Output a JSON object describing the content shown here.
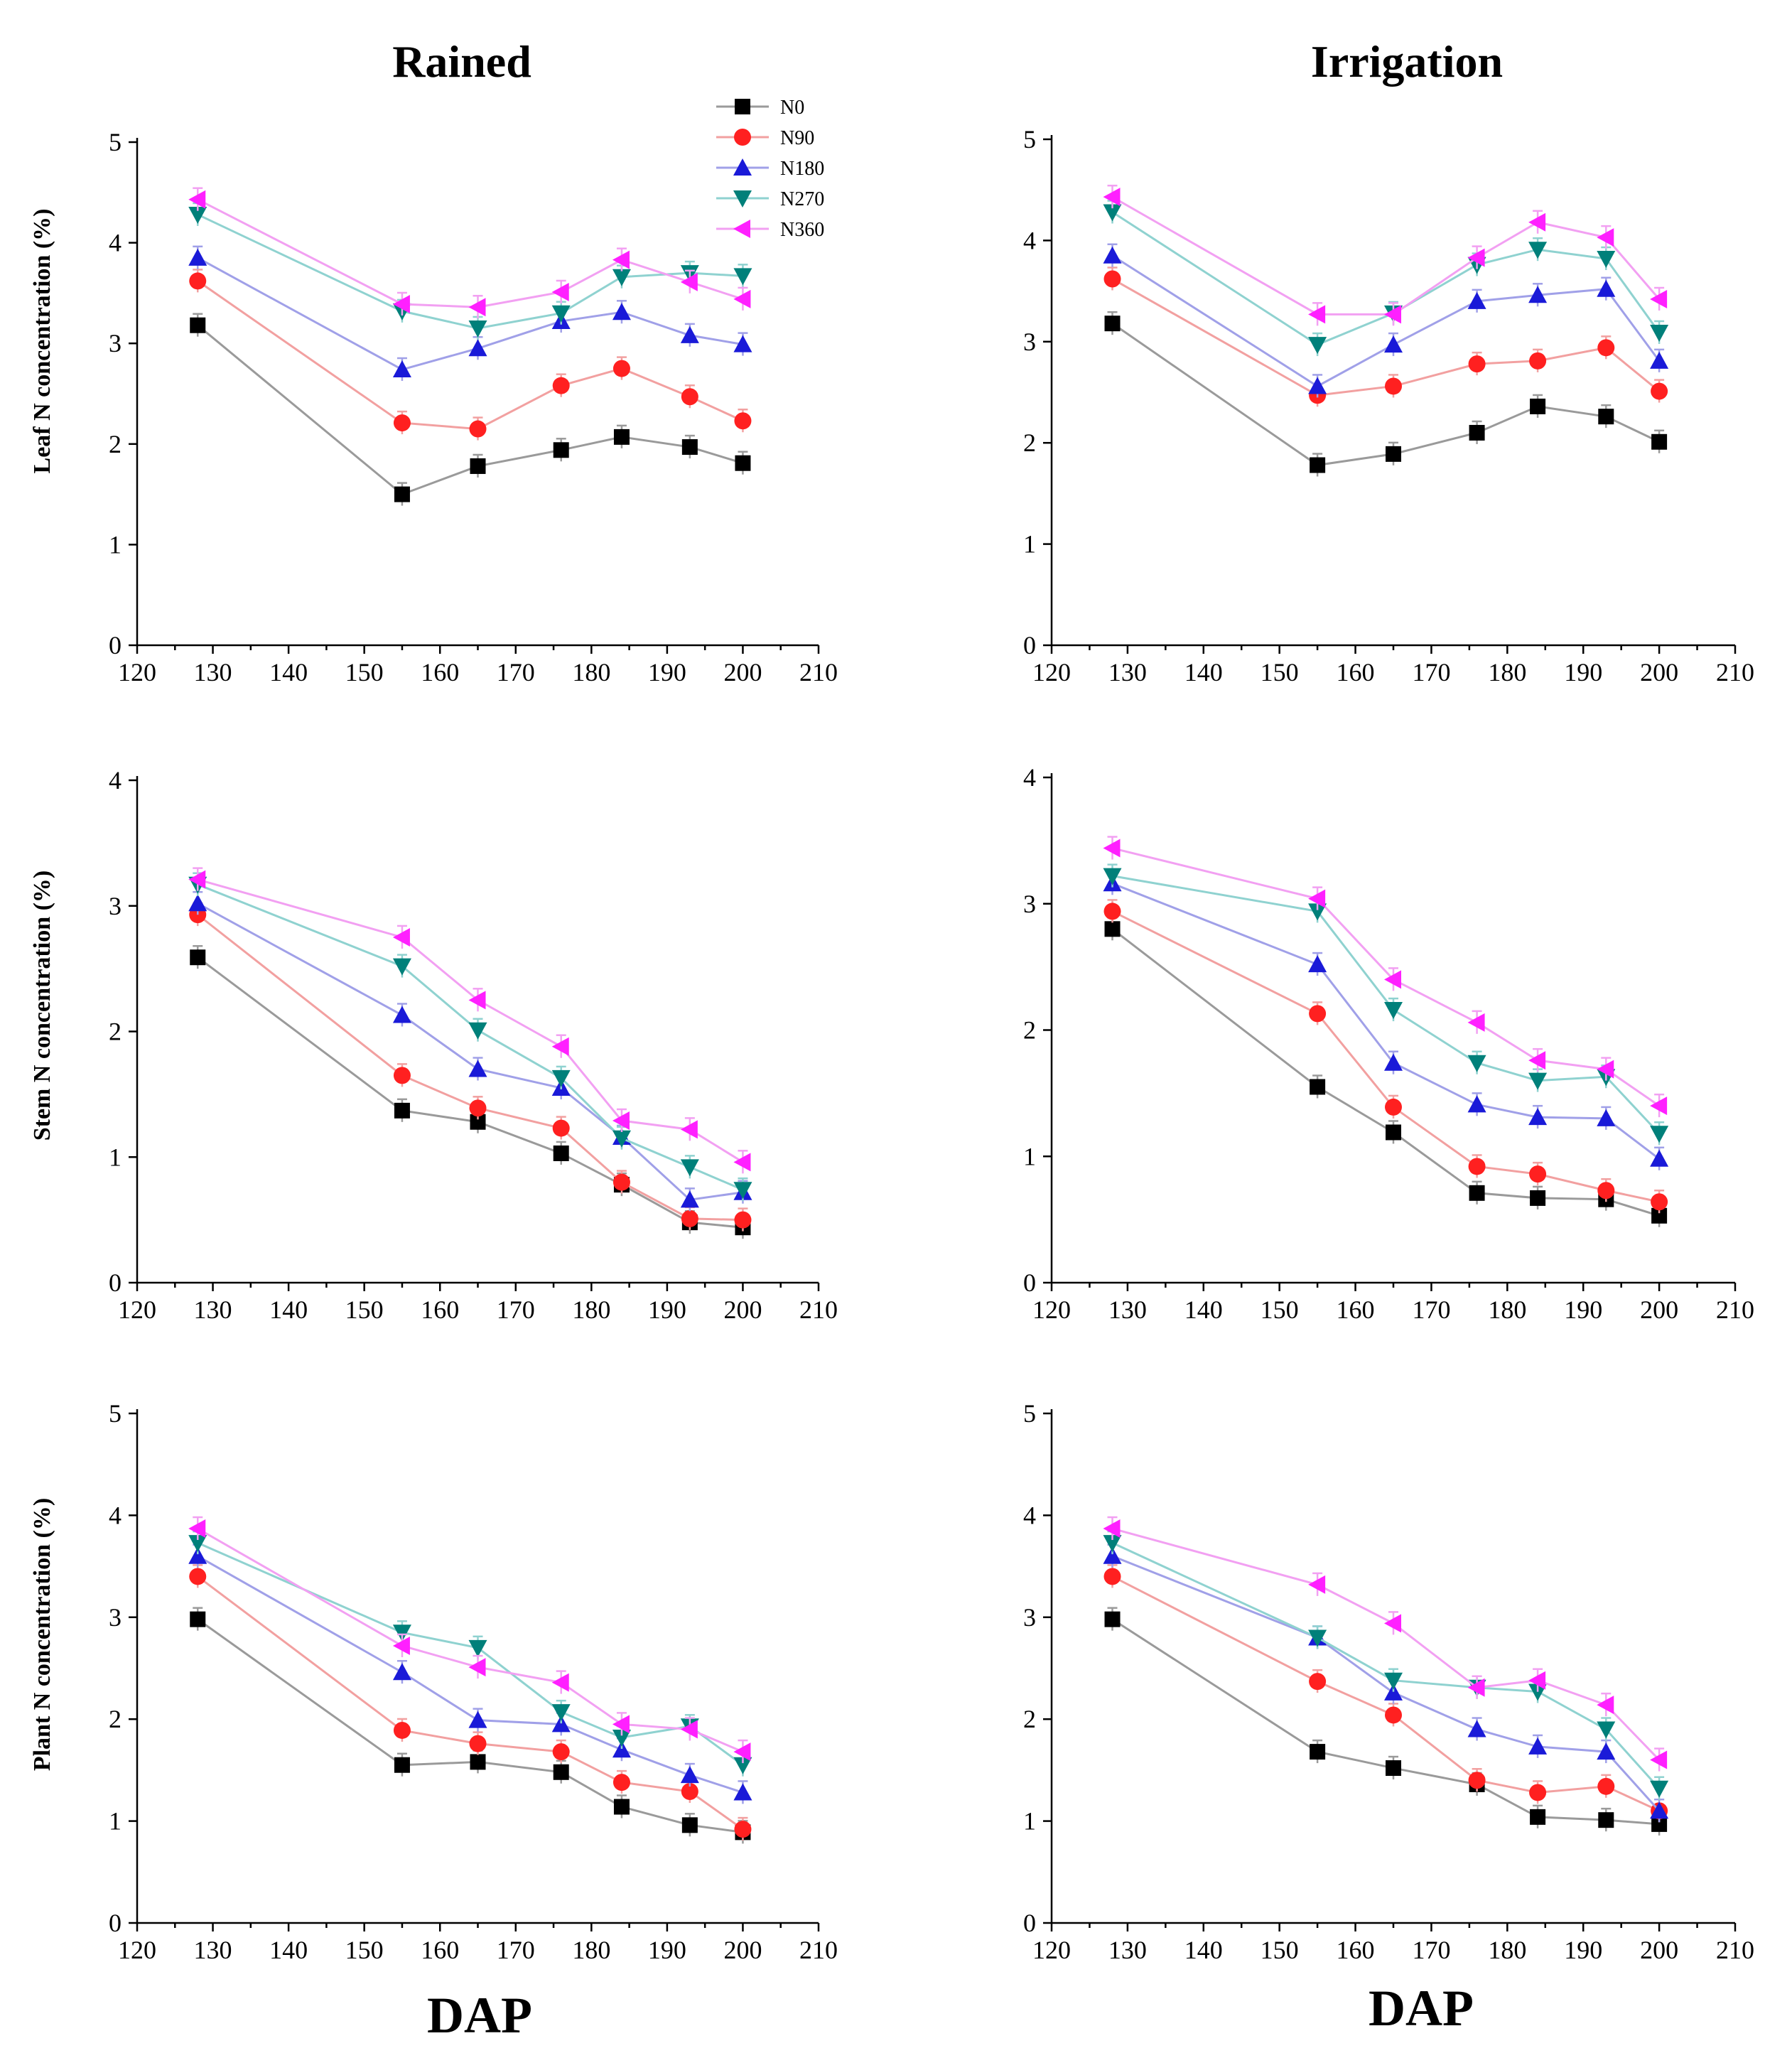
{
  "figure": {
    "col_titles": [
      "Rained",
      "Irrigation"
    ],
    "x_label": "DAP",
    "row_ylabels": [
      "Leaf N concentration (%)",
      "Stem N concentration (%)",
      "Plant N concentration (%)"
    ]
  },
  "series_styles": [
    {
      "name": "N0",
      "color": "#000000",
      "line": "#9a9a9a",
      "marker": "square"
    },
    {
      "name": "N90",
      "color": "#ff2020",
      "line": "#f2a0a0",
      "marker": "circle"
    },
    {
      "name": "N180",
      "color": "#1a1ad8",
      "line": "#a0a0e8",
      "marker": "triangle-up"
    },
    {
      "name": "N270",
      "color": "#00807a",
      "line": "#8fd2d0",
      "marker": "triangle-down"
    },
    {
      "name": "N360",
      "color": "#ff20ff",
      "line": "#f2a0f2",
      "marker": "triangle-left"
    }
  ],
  "chart_data": [
    {
      "type": "line",
      "title": "Rained",
      "xlabel": "",
      "ylabel": "Leaf N concentration (%)",
      "xlim": [
        120,
        210
      ],
      "ylim": [
        0,
        5
      ],
      "xticks": [
        120,
        130,
        140,
        150,
        160,
        170,
        180,
        190,
        200,
        210
      ],
      "yticks": [
        0,
        1,
        2,
        3,
        4,
        5
      ],
      "x": [
        128,
        155,
        165,
        176,
        184,
        193,
        200
      ],
      "series": [
        {
          "name": "N0",
          "values": [
            3.18,
            1.5,
            1.78,
            1.94,
            2.07,
            1.97,
            1.81
          ]
        },
        {
          "name": "N90",
          "values": [
            3.62,
            2.21,
            2.15,
            2.58,
            2.75,
            2.47,
            2.23
          ]
        },
        {
          "name": "N180",
          "values": [
            3.85,
            2.74,
            2.95,
            3.22,
            3.31,
            3.08,
            2.99
          ]
        },
        {
          "name": "N270",
          "values": [
            4.28,
            3.32,
            3.15,
            3.3,
            3.66,
            3.7,
            3.67
          ]
        },
        {
          "name": "N360",
          "values": [
            4.43,
            3.39,
            3.36,
            3.51,
            3.83,
            3.61,
            3.44
          ]
        }
      ],
      "legend": "top-right"
    },
    {
      "type": "line",
      "title": "Irrigation",
      "xlabel": "",
      "ylabel": "",
      "xlim": [
        120,
        210
      ],
      "ylim": [
        0,
        5
      ],
      "xticks": [
        120,
        130,
        140,
        150,
        160,
        170,
        180,
        190,
        200,
        210
      ],
      "yticks": [
        0,
        1,
        2,
        3,
        4,
        5
      ],
      "x": [
        128,
        155,
        165,
        176,
        184,
        193,
        200
      ],
      "series": [
        {
          "name": "N0",
          "values": [
            3.18,
            1.78,
            1.89,
            2.1,
            2.36,
            2.26,
            2.01
          ]
        },
        {
          "name": "N90",
          "values": [
            3.62,
            2.47,
            2.56,
            2.78,
            2.81,
            2.94,
            2.51
          ]
        },
        {
          "name": "N180",
          "values": [
            3.85,
            2.56,
            2.97,
            3.4,
            3.46,
            3.52,
            2.81
          ]
        },
        {
          "name": "N270",
          "values": [
            4.28,
            2.97,
            3.28,
            3.76,
            3.91,
            3.82,
            3.09
          ]
        },
        {
          "name": "N360",
          "values": [
            4.43,
            3.27,
            3.27,
            3.83,
            4.18,
            4.03,
            3.42
          ]
        }
      ]
    },
    {
      "type": "line",
      "title": "",
      "xlabel": "",
      "ylabel": "Stem N concentration (%)",
      "xlim": [
        120,
        210
      ],
      "ylim": [
        0,
        4
      ],
      "xticks": [
        120,
        130,
        140,
        150,
        160,
        170,
        180,
        190,
        200,
        210
      ],
      "yticks": [
        0,
        1,
        2,
        3,
        4
      ],
      "x": [
        128,
        155,
        165,
        176,
        184,
        193,
        200
      ],
      "series": [
        {
          "name": "N0",
          "values": [
            2.59,
            1.37,
            1.28,
            1.03,
            0.78,
            0.48,
            0.44
          ]
        },
        {
          "name": "N90",
          "values": [
            2.93,
            1.65,
            1.39,
            1.23,
            0.8,
            0.51,
            0.5
          ]
        },
        {
          "name": "N180",
          "values": [
            3.02,
            2.13,
            1.7,
            1.55,
            1.16,
            0.66,
            0.72
          ]
        },
        {
          "name": "N270",
          "values": [
            3.17,
            2.52,
            2.01,
            1.63,
            1.15,
            0.92,
            0.74
          ]
        },
        {
          "name": "N360",
          "values": [
            3.21,
            2.75,
            2.25,
            1.88,
            1.29,
            1.22,
            0.96
          ]
        }
      ]
    },
    {
      "type": "line",
      "title": "",
      "xlabel": "",
      "ylabel": "",
      "xlim": [
        120,
        210
      ],
      "ylim": [
        0,
        4
      ],
      "xticks": [
        120,
        130,
        140,
        150,
        160,
        170,
        180,
        190,
        200,
        210
      ],
      "yticks": [
        0,
        1,
        2,
        3,
        4
      ],
      "x": [
        128,
        155,
        165,
        176,
        184,
        193,
        200
      ],
      "series": [
        {
          "name": "N0",
          "values": [
            2.8,
            1.55,
            1.19,
            0.71,
            0.67,
            0.66,
            0.53
          ]
        },
        {
          "name": "N90",
          "values": [
            2.94,
            2.13,
            1.39,
            0.92,
            0.86,
            0.73,
            0.64
          ]
        },
        {
          "name": "N180",
          "values": [
            3.16,
            2.52,
            1.74,
            1.41,
            1.31,
            1.3,
            0.98
          ]
        },
        {
          "name": "N270",
          "values": [
            3.22,
            2.94,
            2.16,
            1.74,
            1.6,
            1.63,
            1.18
          ]
        },
        {
          "name": "N360",
          "values": [
            3.44,
            3.04,
            2.4,
            2.06,
            1.76,
            1.69,
            1.4
          ]
        }
      ]
    },
    {
      "type": "line",
      "title": "",
      "xlabel": "DAP",
      "ylabel": "Plant N concentration (%)",
      "xlim": [
        120,
        210
      ],
      "ylim": [
        0,
        5
      ],
      "xticks": [
        120,
        130,
        140,
        150,
        160,
        170,
        180,
        190,
        200,
        210
      ],
      "yticks": [
        0,
        1,
        2,
        3,
        4,
        5
      ],
      "x": [
        128,
        155,
        165,
        176,
        184,
        193,
        200
      ],
      "series": [
        {
          "name": "N0",
          "values": [
            2.98,
            1.55,
            1.58,
            1.48,
            1.14,
            0.96,
            0.89
          ]
        },
        {
          "name": "N90",
          "values": [
            3.4,
            1.89,
            1.76,
            1.68,
            1.38,
            1.29,
            0.92
          ]
        },
        {
          "name": "N180",
          "values": [
            3.6,
            2.46,
            1.99,
            1.95,
            1.7,
            1.45,
            1.28
          ]
        },
        {
          "name": "N270",
          "values": [
            3.73,
            2.85,
            2.7,
            2.07,
            1.82,
            1.93,
            1.55
          ]
        },
        {
          "name": "N360",
          "values": [
            3.87,
            2.72,
            2.51,
            2.36,
            1.95,
            1.9,
            1.68
          ]
        }
      ]
    },
    {
      "type": "line",
      "title": "",
      "xlabel": "DAP",
      "ylabel": "",
      "xlim": [
        120,
        210
      ],
      "ylim": [
        0,
        5
      ],
      "xticks": [
        120,
        130,
        140,
        150,
        160,
        170,
        180,
        190,
        200,
        210
      ],
      "yticks": [
        0,
        1,
        2,
        3,
        4,
        5
      ],
      "x": [
        128,
        155,
        165,
        176,
        184,
        193,
        200
      ],
      "series": [
        {
          "name": "N0",
          "values": [
            2.98,
            1.68,
            1.52,
            1.36,
            1.04,
            1.01,
            0.97
          ]
        },
        {
          "name": "N90",
          "values": [
            3.4,
            2.37,
            2.04,
            1.4,
            1.28,
            1.34,
            1.1
          ]
        },
        {
          "name": "N180",
          "values": [
            3.6,
            2.8,
            2.26,
            1.9,
            1.73,
            1.68,
            1.1
          ]
        },
        {
          "name": "N270",
          "values": [
            3.73,
            2.8,
            2.38,
            2.31,
            2.27,
            1.9,
            1.32
          ]
        },
        {
          "name": "N360",
          "values": [
            3.87,
            3.32,
            2.94,
            2.31,
            2.38,
            2.14,
            1.6
          ]
        }
      ]
    }
  ]
}
